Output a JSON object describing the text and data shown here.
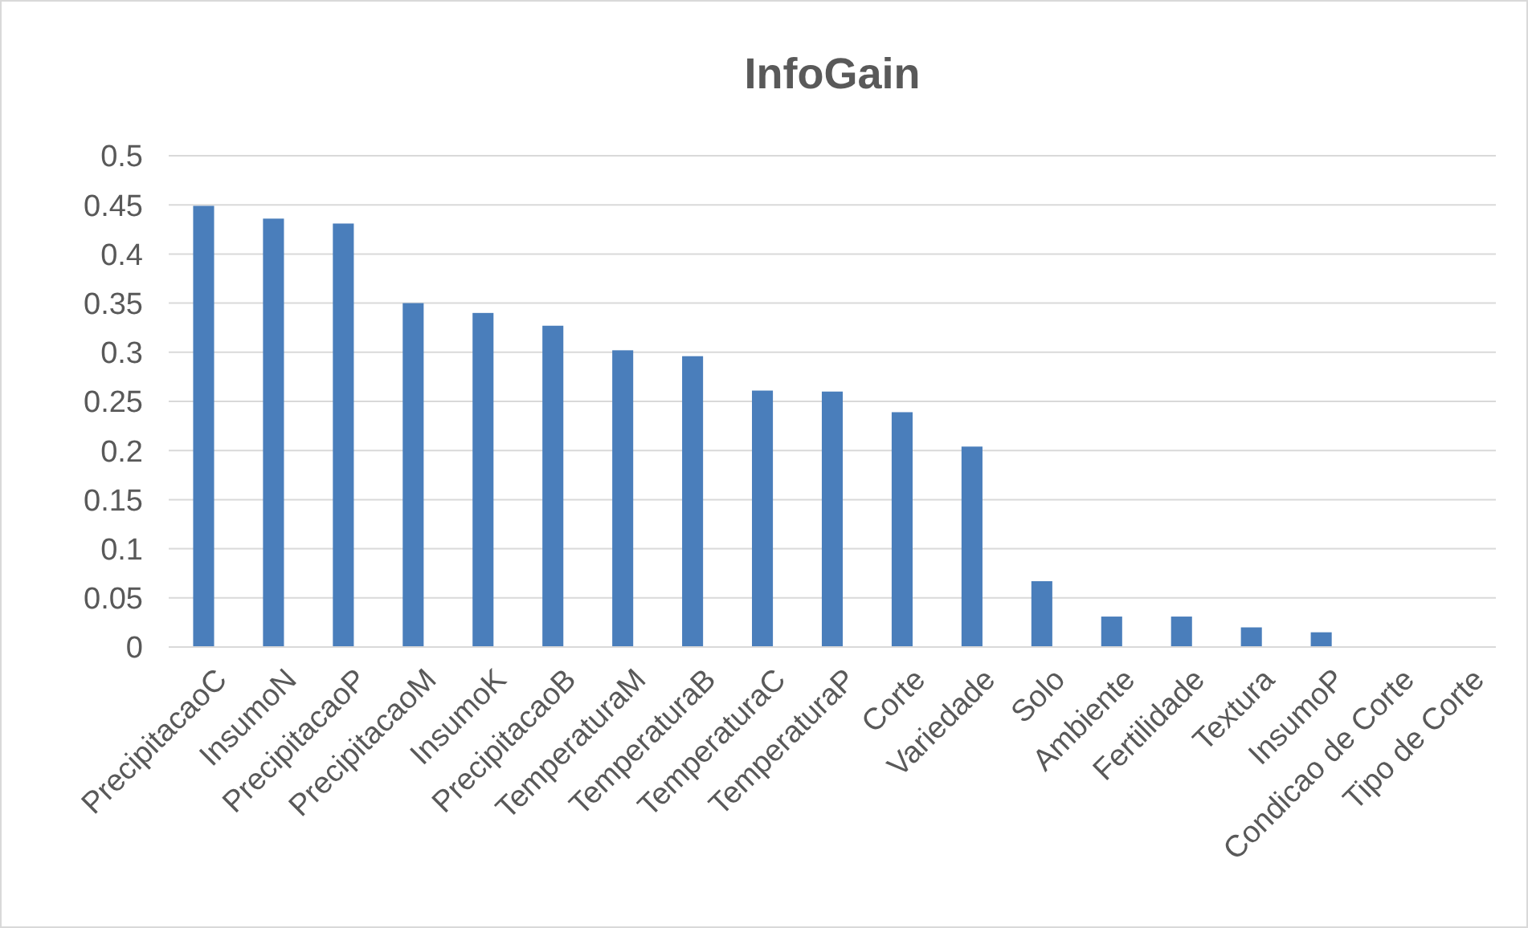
{
  "chart_data": {
    "type": "bar",
    "title": "InfoGain",
    "categories": [
      "PrecipitacaoC",
      "InsumoN",
      "PrecipitacaoP",
      "PrecipitacaoM",
      "InsumoK",
      "PrecipitacaoB",
      "TemperaturaM",
      "TemperaturaB",
      "TemperaturaC",
      "TemperaturaP",
      "Corte",
      "Variedade",
      "Solo",
      "Ambiente",
      "Fertilidade",
      "Textura",
      "InsumoP",
      "Condicao de Corte",
      "Tipo de Corte"
    ],
    "values": [
      0.449,
      0.436,
      0.431,
      0.35,
      0.34,
      0.327,
      0.302,
      0.296,
      0.261,
      0.26,
      0.239,
      0.204,
      0.067,
      0.031,
      0.031,
      0.02,
      0.015,
      0,
      0
    ],
    "color": "#4a7ebb",
    "ylim": [
      0,
      0.5
    ],
    "yticks": [
      {
        "value": 0,
        "label": "0"
      },
      {
        "value": 0.05,
        "label": "0.05"
      },
      {
        "value": 0.1,
        "label": "0.1"
      },
      {
        "value": 0.15,
        "label": "0.15"
      },
      {
        "value": 0.2,
        "label": "0.2"
      },
      {
        "value": 0.25,
        "label": "0.25"
      },
      {
        "value": 0.3,
        "label": "0.3"
      },
      {
        "value": 0.35,
        "label": "0.35"
      },
      {
        "value": 0.4,
        "label": "0.4"
      },
      {
        "value": 0.45,
        "label": "0.45"
      },
      {
        "value": 0.5,
        "label": "0.5"
      }
    ],
    "grid": true
  }
}
